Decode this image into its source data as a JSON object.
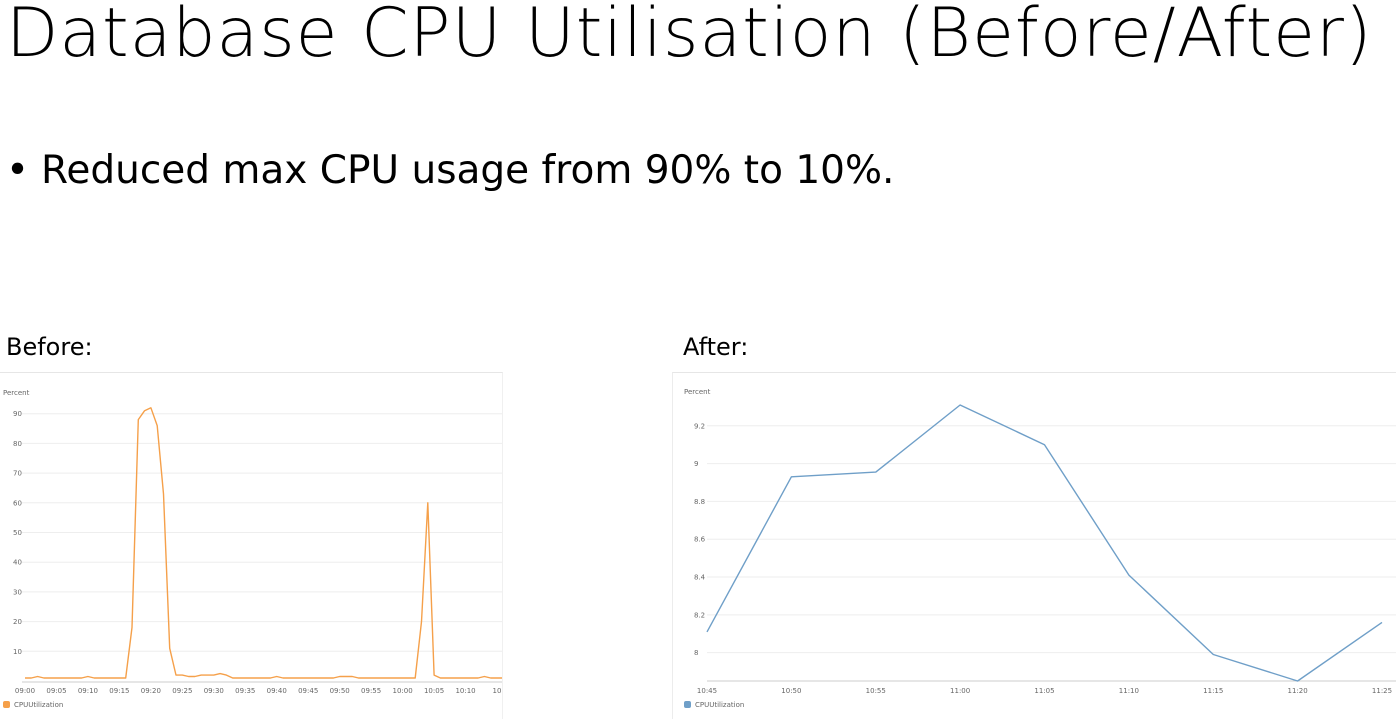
{
  "slide": {
    "title": "Database CPU Utilisation (Before/After)",
    "bullet_marker": "•",
    "bullet": "Reduced max CPU usage from 90% to 10%."
  },
  "panels": {
    "before_label": "Before:",
    "after_label": "After:"
  },
  "chart_data": [
    {
      "type": "line",
      "ylabel": "Percent",
      "ylim": [
        0,
        100
      ],
      "yticks": [
        10,
        20,
        30,
        40,
        50,
        60,
        70,
        80,
        90
      ],
      "xticks": [
        "09:00",
        "09:05",
        "09:10",
        "09:15",
        "09:20",
        "09:25",
        "09:30",
        "09:35",
        "09:40",
        "09:45",
        "09:50",
        "09:55",
        "10:00",
        "10:05",
        "10:10",
        "10"
      ],
      "grid": true,
      "legend": "bottom-left",
      "series": [
        {
          "name": "CPUUtilization",
          "color": "#f5a04a",
          "x_minutes": [
            0,
            1,
            2,
            3,
            4,
            5,
            6,
            7,
            8,
            9,
            10,
            11,
            12,
            13,
            14,
            15,
            16,
            17,
            18,
            19,
            20,
            21,
            22,
            23,
            24,
            25,
            26,
            27,
            28,
            29,
            30,
            31,
            32,
            33,
            34,
            35,
            36,
            37,
            38,
            39,
            40,
            41,
            42,
            43,
            44,
            45,
            46,
            47,
            48,
            49,
            50,
            51,
            52,
            53,
            54,
            55,
            56,
            57,
            58,
            59,
            60,
            61,
            62,
            63,
            64,
            65,
            66,
            67,
            68,
            69,
            70,
            71,
            72,
            73,
            74,
            75,
            76,
            77,
            78
          ],
          "values": [
            1,
            1,
            1.5,
            1,
            1,
            1,
            1,
            1,
            1,
            1,
            1.5,
            1,
            1,
            1,
            1,
            1,
            1,
            18,
            88,
            91,
            92,
            86,
            63,
            11,
            2,
            2,
            1.5,
            1.5,
            2,
            2,
            2,
            2.5,
            2,
            1,
            1,
            1,
            1,
            1,
            1,
            1,
            1.5,
            1,
            1,
            1,
            1,
            1,
            1,
            1,
            1,
            1,
            1.5,
            1.5,
            1.5,
            1,
            1,
            1,
            1,
            1,
            1,
            1,
            1,
            1,
            1,
            20,
            60,
            2,
            1,
            1,
            1,
            1,
            1,
            1,
            1,
            1.5,
            1,
            1,
            1,
            1,
            1
          ]
        }
      ]
    },
    {
      "type": "line",
      "ylabel": "Percent",
      "ylim": [
        7.85,
        9.4
      ],
      "yticks": [
        8,
        8.2,
        8.4,
        8.6,
        8.8,
        9,
        9.2
      ],
      "xticks": [
        "10:45",
        "10:50",
        "10:55",
        "11:00",
        "11:05",
        "11:10",
        "11:15",
        "11:20",
        "11:25"
      ],
      "grid": true,
      "legend": "bottom-left",
      "series": [
        {
          "name": "CPUUtilization",
          "color": "#6f9fc8",
          "x": [
            "10:45",
            "10:50",
            "10:55",
            "11:00",
            "11:05",
            "11:10",
            "11:15",
            "11:20",
            "11:25"
          ],
          "values": [
            8.11,
            8.93,
            8.955,
            9.31,
            9.1,
            8.41,
            7.99,
            7.85,
            8.16
          ]
        }
      ]
    }
  ]
}
